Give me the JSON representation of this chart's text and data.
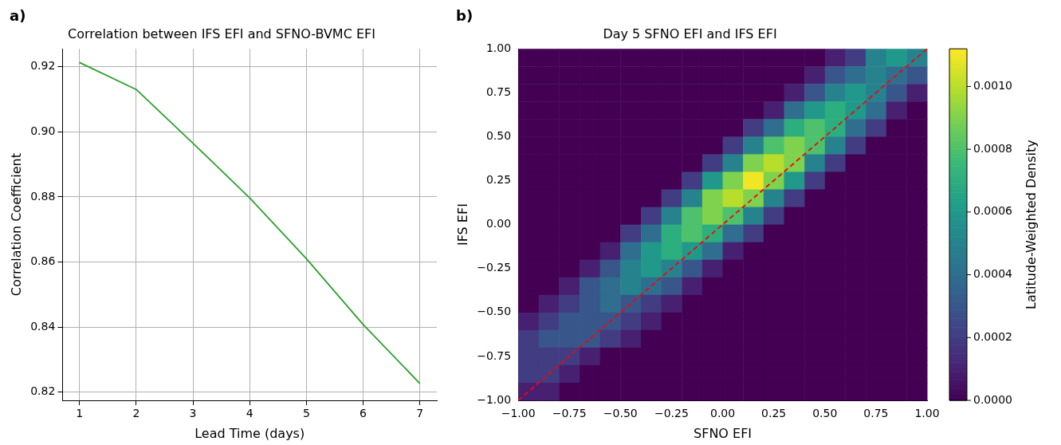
{
  "chart_data": [
    {
      "type": "line",
      "title": "Correlation between IFS EFI and SFNO-BVMC EFI",
      "xlabel": "Lead Time (days)",
      "ylabel": "Correlation Coefficient",
      "annotations": [
        "a)"
      ],
      "x": [
        1,
        2,
        3,
        4,
        5,
        6,
        7
      ],
      "series": [
        {
          "color": "#2ca02c",
          "values": [
            0.9213,
            0.913,
            0.8965,
            0.8797,
            0.861,
            0.8408,
            0.8227
          ]
        }
      ],
      "xlim": [
        0.7,
        7.3
      ],
      "xticks": [
        1,
        2,
        3,
        4,
        5,
        6,
        7
      ],
      "ylim": [
        0.8175,
        0.9255
      ],
      "yticks": [
        0.82,
        0.84,
        0.86,
        0.88,
        {
          "value": 0.9,
          "label": "0.90"
        },
        0.92
      ],
      "grid": true
    },
    {
      "type": "heatmap",
      "title": "Day 5 SFNO EFI and IFS EFI",
      "xlabel": "SFNO EFI",
      "ylabel": "IFS EFI",
      "clabel": "Latitude-Weighted Density",
      "annotations": [
        "b)"
      ],
      "xlim": [
        -1,
        1
      ],
      "xticks": [
        {
          "value": -1,
          "label": "−1.00"
        },
        {
          "value": -0.75,
          "label": "−0.75"
        },
        {
          "value": -0.5,
          "label": "−0.50"
        },
        {
          "value": -0.25,
          "label": "−0.25"
        },
        {
          "value": 0,
          "label": "0.00"
        },
        {
          "value": 0.25,
          "label": "0.25"
        },
        {
          "value": 0.5,
          "label": "0.50"
        },
        {
          "value": 0.75,
          "label": "0.75"
        },
        {
          "value": 1,
          "label": "1.00"
        }
      ],
      "ylim": [
        -1,
        1
      ],
      "yticks": [
        {
          "value": -1,
          "label": "−1.00"
        },
        {
          "value": -0.75,
          "label": "−0.75"
        },
        {
          "value": -0.5,
          "label": "−0.50"
        },
        {
          "value": -0.25,
          "label": "−0.25"
        },
        {
          "value": 0,
          "label": "0.00"
        },
        {
          "value": 0.25,
          "label": "0.25"
        },
        {
          "value": 0.5,
          "label": "0.50"
        },
        {
          "value": 0.75,
          "label": "0.75"
        },
        {
          "value": 1,
          "label": "1.00"
        }
      ],
      "clim": [
        0,
        0.00112
      ],
      "cticks": [
        {
          "value": 0,
          "label": "0.0000"
        },
        {
          "value": 0.0002,
          "label": "0.0002"
        },
        {
          "value": 0.0004,
          "label": "0.0004"
        },
        {
          "value": 0.0006,
          "label": "0.0006"
        },
        {
          "value": 0.0008,
          "label": "0.0008"
        },
        {
          "value": 0.001,
          "label": "0.0010"
        }
      ],
      "series": [
        {
          "type": "line",
          "color": "#ff0000",
          "line_style": "dashed",
          "x": [
            -1,
            1
          ],
          "values": [
            -1,
            1
          ]
        }
      ],
      "cells": [
        [
          0,
          0,
          0,
          0,
          0,
          0,
          0,
          0,
          0,
          0,
          0,
          0,
          0,
          0,
          0,
          0.0001,
          0.0002,
          0.0005,
          0.0006,
          0.0005
        ],
        [
          0,
          0,
          0,
          0,
          0,
          0,
          0,
          0,
          0,
          0,
          0,
          0,
          0,
          0,
          0.0001,
          0.0003,
          0.0004,
          0.0005,
          0.0004,
          0.0003
        ],
        [
          0,
          0,
          0,
          0,
          0,
          0,
          0,
          0,
          0,
          0,
          0,
          0,
          0,
          0.0001,
          0.0003,
          0.0005,
          0.0006,
          0.0005,
          0.0003,
          0.0001
        ],
        [
          0,
          0,
          0,
          0,
          0,
          0,
          0,
          0,
          0,
          0,
          0,
          0,
          0.0001,
          0.0004,
          0.0006,
          0.0007,
          0.0006,
          0.0004,
          0.0001,
          0
        ],
        [
          0,
          0,
          0,
          0,
          0,
          0,
          0,
          0,
          0,
          0,
          0,
          0.0002,
          0.0004,
          0.0007,
          0.0008,
          0.0007,
          0.0004,
          0.0002,
          0,
          0
        ],
        [
          0,
          0,
          0,
          0,
          0,
          0,
          0,
          0,
          0,
          0,
          0.0002,
          0.0005,
          0.0008,
          0.0009,
          0.0008,
          0.0005,
          0.0002,
          0,
          0,
          0
        ],
        [
          0,
          0,
          0,
          0,
          0,
          0,
          0,
          0,
          0,
          0.0002,
          0.0005,
          0.0009,
          0.001,
          0.0009,
          0.0005,
          0.0002,
          0,
          0,
          0,
          0
        ],
        [
          0,
          0,
          0,
          0,
          0,
          0,
          0,
          0,
          0.0002,
          0.0006,
          0.0009,
          0.0011,
          0.0009,
          0.0006,
          0.0002,
          0,
          0,
          0,
          0,
          0
        ],
        [
          0,
          0,
          0,
          0,
          0,
          0,
          0,
          0.0002,
          0.0005,
          0.0009,
          0.001,
          0.0009,
          0.0005,
          0.0002,
          0,
          0,
          0,
          0,
          0,
          0
        ],
        [
          0,
          0,
          0,
          0,
          0,
          0,
          0.0002,
          0.0005,
          0.0008,
          0.0009,
          0.0008,
          0.0005,
          0.0002,
          0,
          0,
          0,
          0,
          0,
          0,
          0
        ],
        [
          0,
          0,
          0,
          0,
          0,
          0.0002,
          0.0004,
          0.0007,
          0.0008,
          0.0007,
          0.0004,
          0.0002,
          0,
          0,
          0,
          0,
          0,
          0,
          0,
          0
        ],
        [
          0,
          0,
          0,
          0,
          0.0001,
          0.0004,
          0.0006,
          0.0007,
          0.0006,
          0.0004,
          0.0001,
          0,
          0,
          0,
          0,
          0,
          0,
          0,
          0,
          0
        ],
        [
          0,
          0,
          0,
          0.0001,
          0.0003,
          0.0005,
          0.0006,
          0.0005,
          0.0003,
          0.0001,
          0,
          0,
          0,
          0,
          0,
          0,
          0,
          0,
          0,
          0
        ],
        [
          0,
          0,
          0.0001,
          0.0003,
          0.0004,
          0.0005,
          0.0004,
          0.0003,
          0.0001,
          0,
          0,
          0,
          0,
          0,
          0,
          0,
          0,
          0,
          0,
          0
        ],
        [
          0,
          0.0001,
          0.0002,
          0.0003,
          0.0004,
          0.0003,
          0.0002,
          0.0001,
          0,
          0,
          0,
          0,
          0,
          0,
          0,
          0,
          0,
          0,
          0,
          0
        ],
        [
          0.0001,
          0.0002,
          0.0003,
          0.0003,
          0.0003,
          0.0002,
          0.0001,
          0,
          0,
          0,
          0,
          0,
          0,
          0,
          0,
          0,
          0,
          0,
          0,
          0
        ],
        [
          0.0002,
          0.0003,
          0.0003,
          0.0003,
          0.0002,
          0.0001,
          0,
          0,
          0,
          0,
          0,
          0,
          0,
          0,
          0,
          0,
          0,
          0,
          0,
          0
        ],
        [
          0.0002,
          0.0002,
          0.0002,
          0.0001,
          0,
          0,
          0,
          0,
          0,
          0,
          0,
          0,
          0,
          0,
          0,
          0,
          0,
          0,
          0,
          0
        ],
        [
          0.0002,
          0.0002,
          0.0001,
          0,
          0,
          0,
          0,
          0,
          0,
          0,
          0,
          0,
          0,
          0,
          0,
          0,
          0,
          0,
          0,
          0
        ],
        [
          0.0001,
          0.0001,
          0,
          0,
          0,
          0,
          0,
          0,
          0,
          0,
          0,
          0,
          0,
          0,
          0,
          0,
          0,
          0,
          0,
          0
        ]
      ]
    }
  ]
}
